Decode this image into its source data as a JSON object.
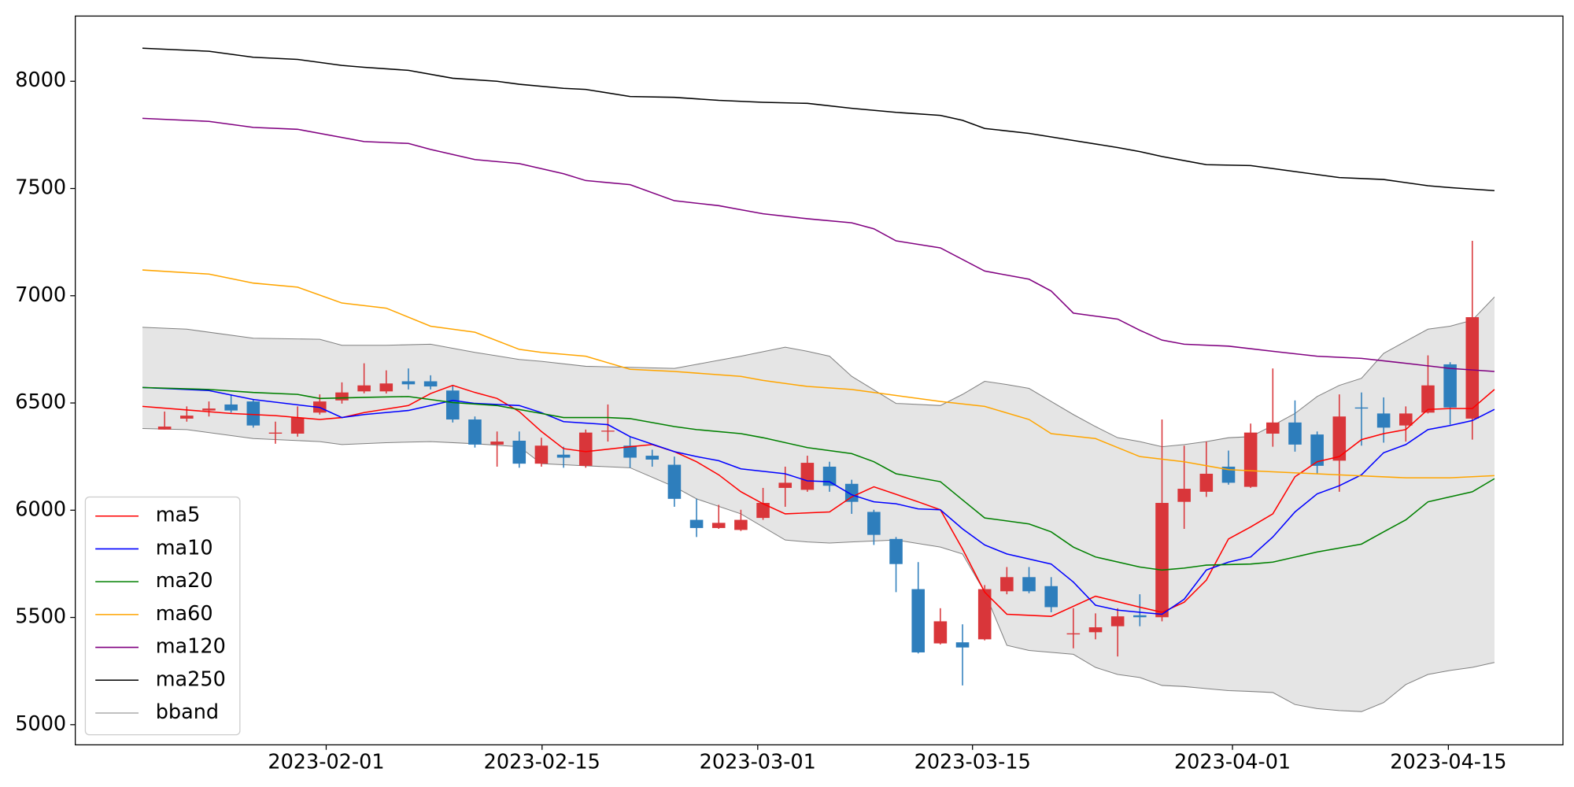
{
  "chart_data": {
    "type": "candlestick",
    "xlim": [
      -3.03,
      64.09
    ],
    "ylim": [
      4906,
      8304
    ],
    "yticks": [
      5000,
      5500,
      6000,
      6500,
      7000,
      7500,
      8000
    ],
    "xticks": [
      {
        "value": 8.29,
        "label": "2023-02-01"
      },
      {
        "value": 18.03,
        "label": "2023-02-15"
      },
      {
        "value": 27.76,
        "label": "2023-03-01"
      },
      {
        "value": 37.45,
        "label": "2023-03-15"
      },
      {
        "value": 49.18,
        "label": "2023-04-01"
      },
      {
        "value": 58.92,
        "label": "2023-04-15"
      }
    ],
    "legend": "lower left",
    "candles": {
      "up_color": "#d9363a",
      "down_color": "#2e7ebc",
      "x": [
        1,
        2,
        3,
        4,
        5,
        6,
        7,
        8,
        9,
        10,
        11,
        12,
        13,
        14,
        15,
        16,
        17,
        18,
        19,
        20,
        21,
        22,
        23,
        24,
        25,
        26,
        27,
        28,
        29,
        30,
        31,
        32,
        33,
        34,
        35,
        36,
        37,
        38,
        39,
        40,
        41,
        42,
        43,
        44,
        45,
        46,
        47,
        48,
        49,
        50,
        51,
        52,
        53,
        54,
        55,
        56,
        57,
        58,
        59,
        60
      ],
      "open": [
        6376,
        6427,
        6465,
        6493,
        6507,
        6357,
        6357,
        6455,
        6512,
        6554,
        6554,
        6601,
        6601,
        6558,
        6423,
        6306,
        6324,
        6217,
        6259,
        6207,
        6367,
        6301,
        6254,
        6212,
        5955,
        5917,
        5908,
        5964,
        6104,
        6095,
        6203,
        6123,
        5992,
        5866,
        5632,
        5379,
        5384,
        5398,
        5622,
        5688,
        5646,
        5421,
        5431,
        5459,
        5510,
        5501,
        6039,
        6086,
        6203,
        6109,
        6357,
        6409,
        6353,
        6231,
        6479,
        6451,
        6395,
        6455,
        6680,
        6427
      ],
      "high": [
        6460,
        6484,
        6507,
        6540,
        6516,
        6413,
        6484,
        6540,
        6596,
        6685,
        6652,
        6661,
        6629,
        6582,
        6437,
        6367,
        6367,
        6338,
        6296,
        6376,
        6493,
        6343,
        6282,
        6250,
        6053,
        6025,
        6002,
        6104,
        6203,
        6254,
        6226,
        6142,
        6002,
        5875,
        5758,
        5543,
        5468,
        5651,
        5735,
        5735,
        5688,
        5543,
        5519,
        5543,
        5608,
        6423,
        6301,
        6320,
        6278,
        6404,
        6661,
        6512,
        6367,
        6540,
        6549,
        6526,
        6484,
        6722,
        6690,
        7256
      ],
      "low": [
        6376,
        6413,
        6437,
        6455,
        6385,
        6310,
        6343,
        6446,
        6497,
        6545,
        6544,
        6563,
        6563,
        6409,
        6292,
        6203,
        6198,
        6203,
        6198,
        6198,
        6320,
        6198,
        6203,
        6016,
        5875,
        5913,
        5903,
        5955,
        6016,
        6086,
        6086,
        5983,
        5838,
        5618,
        5332,
        5374,
        5183,
        5393,
        5608,
        5613,
        5524,
        5356,
        5398,
        5318,
        5459,
        5482,
        5913,
        6062,
        6119,
        6104,
        6296,
        6273,
        6170,
        6086,
        6301,
        6315,
        6320,
        6451,
        6399,
        6329
      ],
      "close": [
        6390,
        6441,
        6474,
        6465,
        6395,
        6362,
        6432,
        6507,
        6549,
        6582,
        6591,
        6587,
        6577,
        6423,
        6306,
        6320,
        6217,
        6301,
        6245,
        6362,
        6371,
        6245,
        6236,
        6053,
        5917,
        5941,
        5955,
        6034,
        6128,
        6221,
        6114,
        6039,
        5885,
        5749,
        5337,
        5482,
        5360,
        5632,
        5688,
        5622,
        5548,
        5426,
        5454,
        5505,
        5501,
        6034,
        6100,
        6170,
        6128,
        6362,
        6409,
        6306,
        6207,
        6437,
        6474,
        6385,
        6451,
        6582,
        6479,
        6900
      ]
    },
    "series": [
      {
        "name": "ma5",
        "color": "#ff0000",
        "x": [
          0,
          4,
          6,
          8,
          9,
          10,
          12,
          13,
          14,
          15,
          16,
          17,
          18,
          19,
          20,
          22,
          23,
          24,
          25,
          26,
          27,
          28,
          29,
          31,
          32,
          33,
          35,
          36,
          37,
          38,
          39,
          41,
          43,
          45,
          46,
          47,
          48,
          49,
          50,
          51,
          52,
          53,
          54,
          55,
          56,
          57,
          58,
          59,
          60,
          61
        ],
        "values": [
          6484,
          6451,
          6441,
          6423,
          6432,
          6455,
          6488,
          6544,
          6582,
          6549,
          6521,
          6460,
          6367,
          6287,
          6273,
          6296,
          6306,
          6273,
          6226,
          6165,
          6086,
          6030,
          5983,
          5992,
          6062,
          6109,
          6039,
          6002,
          5819,
          5618,
          5515,
          5505,
          5599,
          5548,
          5524,
          5571,
          5674,
          5866,
          5922,
          5983,
          6156,
          6226,
          6250,
          6329,
          6357,
          6376,
          6470,
          6474,
          6474,
          6563
        ]
      },
      {
        "name": "ma10",
        "color": "#0000ff",
        "x": [
          0,
          3,
          5,
          8,
          9,
          10,
          12,
          13,
          14,
          15,
          17,
          18,
          19,
          21,
          22,
          24,
          25,
          26,
          27,
          29,
          30,
          31,
          32,
          33,
          34,
          35,
          36,
          37,
          38,
          39,
          41,
          42,
          43,
          44,
          45,
          46,
          47,
          48,
          49,
          50,
          51,
          52,
          53,
          54,
          55,
          56,
          57,
          58,
          59,
          60,
          61
        ],
        "values": [
          6572,
          6558,
          6516,
          6479,
          6432,
          6446,
          6465,
          6488,
          6512,
          6498,
          6488,
          6455,
          6413,
          6399,
          6343,
          6273,
          6250,
          6231,
          6193,
          6170,
          6137,
          6133,
          6072,
          6039,
          6030,
          6006,
          6002,
          5913,
          5838,
          5796,
          5749,
          5665,
          5557,
          5534,
          5524,
          5515,
          5585,
          5721,
          5758,
          5782,
          5875,
          5992,
          6076,
          6114,
          6165,
          6268,
          6306,
          6376,
          6395,
          6418,
          6470
        ]
      },
      {
        "name": "ma20",
        "color": "#008000",
        "x": [
          0,
          3,
          5,
          7,
          8,
          10,
          12,
          14,
          16,
          18,
          19,
          21,
          22,
          24,
          25,
          27,
          28,
          30,
          32,
          33,
          34,
          36,
          37,
          38,
          40,
          41,
          42,
          43,
          45,
          46,
          47,
          48,
          50,
          51,
          53,
          55,
          56,
          57,
          58,
          60,
          61
        ],
        "values": [
          6572,
          6563,
          6549,
          6540,
          6521,
          6526,
          6530,
          6502,
          6488,
          6451,
          6432,
          6432,
          6427,
          6390,
          6376,
          6357,
          6338,
          6292,
          6264,
          6226,
          6170,
          6133,
          6048,
          5964,
          5936,
          5899,
          5828,
          5782,
          5735,
          5721,
          5730,
          5744,
          5749,
          5758,
          5805,
          5842,
          5899,
          5955,
          6039,
          6086,
          6147
        ]
      },
      {
        "name": "ma60",
        "color": "#ffa500",
        "x": [
          0,
          3,
          5,
          7,
          9,
          11,
          13,
          15,
          17,
          18,
          20,
          22,
          24,
          27,
          28,
          30,
          32,
          34,
          36,
          38,
          40,
          41,
          43,
          45,
          47,
          49,
          51,
          54,
          57,
          59,
          61
        ],
        "values": [
          7120,
          7101,
          7059,
          7040,
          6966,
          6942,
          6858,
          6830,
          6750,
          6736,
          6718,
          6657,
          6647,
          6624,
          6605,
          6577,
          6563,
          6535,
          6507,
          6484,
          6423,
          6357,
          6334,
          6250,
          6226,
          6189,
          6179,
          6165,
          6151,
          6151,
          6161
        ]
      },
      {
        "name": "ma120",
        "color": "#800080",
        "x": [
          0,
          3,
          5,
          7,
          10,
          12,
          13,
          15,
          17,
          19,
          20,
          22,
          24,
          26,
          27,
          28,
          30,
          32,
          33,
          34,
          36,
          38,
          40,
          41,
          42,
          44,
          45,
          46,
          47,
          49,
          51,
          53,
          55,
          57,
          59,
          61
        ],
        "values": [
          7827,
          7813,
          7785,
          7776,
          7719,
          7710,
          7682,
          7635,
          7616,
          7569,
          7537,
          7518,
          7443,
          7420,
          7401,
          7382,
          7359,
          7340,
          7312,
          7256,
          7223,
          7115,
          7077,
          7022,
          6919,
          6891,
          6839,
          6793,
          6774,
          6765,
          6741,
          6718,
          6708,
          6685,
          6661,
          6647
        ]
      },
      {
        "name": "ma250",
        "color": "#000000",
        "x": [
          0,
          3,
          5,
          7,
          9,
          10,
          12,
          14,
          16,
          17,
          19,
          20,
          22,
          24,
          26,
          28,
          30,
          32,
          34,
          36,
          37,
          38,
          40,
          42,
          44,
          45,
          46,
          48,
          50,
          52,
          54,
          56,
          58,
          59,
          61
        ],
        "values": [
          8154,
          8140,
          8112,
          8102,
          8074,
          8065,
          8051,
          8014,
          8000,
          7986,
          7967,
          7962,
          7929,
          7925,
          7911,
          7902,
          7897,
          7874,
          7855,
          7841,
          7818,
          7780,
          7757,
          7724,
          7691,
          7672,
          7649,
          7611,
          7607,
          7579,
          7551,
          7542,
          7513,
          7504,
          7490
        ]
      }
    ],
    "band": {
      "name": "bband",
      "color": "#808080",
      "fill": "#e5e5e5",
      "x": [
        0,
        2,
        5,
        8,
        9,
        11,
        13,
        15,
        17,
        18,
        20,
        22,
        24,
        25,
        27,
        29,
        30,
        31,
        32,
        34,
        36,
        37,
        38,
        39,
        40,
        42,
        43,
        44,
        45,
        46,
        47,
        48,
        49,
        50,
        51,
        52,
        53,
        54,
        55,
        56,
        57,
        58,
        59,
        60,
        61
      ],
      "upper": [
        6853,
        6844,
        6802,
        6797,
        6769,
        6769,
        6774,
        6736,
        6703,
        6694,
        6671,
        6666,
        6661,
        6680,
        6718,
        6760,
        6741,
        6718,
        6624,
        6498,
        6488,
        6540,
        6601,
        6586,
        6568,
        6446,
        6390,
        6338,
        6320,
        6296,
        6306,
        6320,
        6338,
        6343,
        6395,
        6451,
        6530,
        6582,
        6615,
        6731,
        6788,
        6844,
        6858,
        6886,
        6994
      ],
      "lower": [
        6381,
        6376,
        6334,
        6320,
        6306,
        6315,
        6320,
        6310,
        6296,
        6217,
        6207,
        6198,
        6109,
        6053,
        5983,
        5861,
        5852,
        5847,
        5852,
        5861,
        5828,
        5796,
        5618,
        5370,
        5346,
        5328,
        5267,
        5234,
        5220,
        5183,
        5178,
        5168,
        5159,
        5155,
        5150,
        5094,
        5075,
        5066,
        5061,
        5103,
        5187,
        5234,
        5253,
        5267,
        5290
      ]
    }
  }
}
